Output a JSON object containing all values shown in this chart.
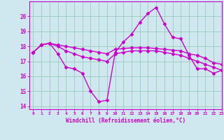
{
  "background_color": "#cfe8f0",
  "grid_color": "#99ccbb",
  "line_color": "#cc00cc",
  "xlabel": "Windchill (Refroidissement éolien,°C)",
  "xlim": [
    -0.5,
    23
  ],
  "ylim": [
    13.8,
    21.0
  ],
  "yticks": [
    14,
    15,
    16,
    17,
    18,
    19,
    20
  ],
  "xticks": [
    0,
    1,
    2,
    3,
    4,
    5,
    6,
    7,
    8,
    9,
    10,
    11,
    12,
    13,
    14,
    15,
    16,
    17,
    18,
    19,
    20,
    21,
    22,
    23
  ],
  "series": [
    {
      "x": [
        0,
        1,
        2,
        3,
        4,
        5,
        6,
        7,
        8,
        9,
        10,
        11,
        12,
        13,
        14,
        15,
        16,
        17,
        18,
        19,
        20,
        21,
        22,
        23
      ],
      "y": [
        17.6,
        18.1,
        18.2,
        17.5,
        16.6,
        16.5,
        16.2,
        15.0,
        14.3,
        14.4,
        17.6,
        18.3,
        18.8,
        19.6,
        20.2,
        20.6,
        19.5,
        18.6,
        18.5,
        17.4,
        16.5,
        16.5,
        16.2,
        16.4
      ],
      "linewidth": 1.0
    },
    {
      "x": [
        0,
        1,
        2,
        3,
        4,
        5,
        6,
        7,
        8,
        9,
        10,
        11,
        12,
        13,
        14,
        15,
        16,
        17,
        18,
        19,
        20,
        21,
        22,
        23
      ],
      "y": [
        17.6,
        18.1,
        18.2,
        18.1,
        18.0,
        17.9,
        17.8,
        17.7,
        17.6,
        17.5,
        17.8,
        17.85,
        17.9,
        17.9,
        17.9,
        17.85,
        17.8,
        17.75,
        17.7,
        17.5,
        17.4,
        17.2,
        16.9,
        16.8
      ],
      "linewidth": 1.0
    },
    {
      "x": [
        0,
        1,
        2,
        3,
        4,
        5,
        6,
        7,
        8,
        9,
        10,
        11,
        12,
        13,
        14,
        15,
        16,
        17,
        18,
        19,
        20,
        21,
        22,
        23
      ],
      "y": [
        17.6,
        18.1,
        18.2,
        18.0,
        17.7,
        17.5,
        17.3,
        17.2,
        17.1,
        17.0,
        17.5,
        17.6,
        17.7,
        17.7,
        17.7,
        17.7,
        17.6,
        17.5,
        17.4,
        17.2,
        17.0,
        16.8,
        16.6,
        16.4
      ],
      "linewidth": 1.0
    }
  ]
}
